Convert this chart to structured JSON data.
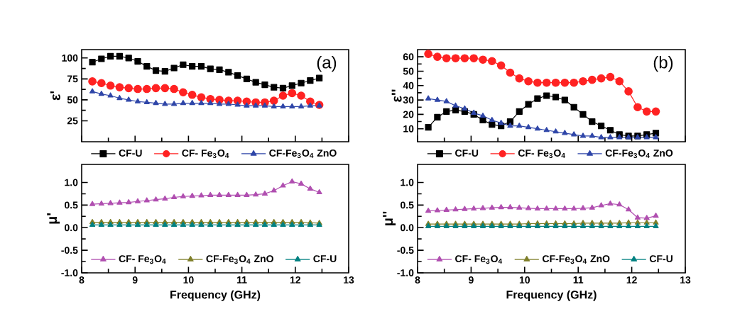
{
  "chart_data": [
    {
      "type": "line",
      "ylabel": "ε'",
      "annotations": [
        "(a)"
      ],
      "legend": "bottom",
      "tick_labels": "y",
      "line_style": "solid",
      "x": [
        8.2,
        8.37,
        8.54,
        8.71,
        8.88,
        9.05,
        9.22,
        9.39,
        9.56,
        9.73,
        9.9,
        10.07,
        10.24,
        10.41,
        10.58,
        10.75,
        10.92,
        11.09,
        11.26,
        11.43,
        11.6,
        11.77,
        11.94,
        12.11,
        12.28,
        12.45
      ],
      "xlim": [
        8,
        13
      ],
      "xticks": [
        8,
        9,
        10,
        11,
        12,
        13
      ],
      "ylim": [
        0,
        110
      ],
      "yticks": [
        25,
        50,
        75,
        100
      ],
      "series": [
        {
          "name": "CF-U",
          "color": "#000000",
          "marker": "square",
          "values": [
            95,
            99,
            102,
            102,
            100,
            96,
            90,
            85,
            84,
            88,
            92,
            90,
            90,
            87,
            86,
            83,
            79,
            75,
            71,
            68,
            65,
            64,
            67,
            70,
            73,
            76
          ]
        },
        {
          "name": "CF- Fe$_{3}$O$_{4}$",
          "color": "#ff2222",
          "marker": "circle",
          "values": [
            72,
            70,
            67,
            65,
            64,
            63,
            63,
            64,
            64,
            63,
            59,
            56,
            53,
            51,
            50,
            49,
            49,
            48,
            47,
            47,
            49,
            55,
            58,
            55,
            48,
            44
          ]
        },
        {
          "name": "CF-Fe$_{3}$O$_{4}$ ZnO",
          "color": "#2f46a8",
          "marker": "triangle",
          "values": [
            60,
            57,
            55,
            52,
            50,
            48,
            47,
            46,
            45,
            45,
            46,
            46,
            46,
            46,
            45,
            45,
            44,
            43,
            43,
            43,
            42,
            42,
            42,
            42,
            43,
            43
          ]
        }
      ]
    },
    {
      "type": "line",
      "ylabel": "μ'",
      "xlabel": "Frequency (GHz)",
      "legend": "bottom",
      "line_style": "solid",
      "x": [
        8.2,
        8.37,
        8.54,
        8.71,
        8.88,
        9.05,
        9.22,
        9.39,
        9.56,
        9.73,
        9.9,
        10.07,
        10.24,
        10.41,
        10.58,
        10.75,
        10.92,
        11.09,
        11.26,
        11.43,
        11.6,
        11.77,
        11.94,
        12.11,
        12.28,
        12.45
      ],
      "xlim": [
        8,
        13
      ],
      "xticks": [
        8,
        9,
        10,
        11,
        12,
        13
      ],
      "ylim": [
        -1,
        1.4
      ],
      "yticks": [
        {
          "value": -1,
          "label": "-1.0"
        },
        {
          "value": -0.5,
          "label": "-0.5"
        },
        {
          "value": 0,
          "label": "0.0"
        },
        {
          "value": 0.5,
          "label": "0.5"
        },
        {
          "value": 1,
          "label": "1.0"
        }
      ],
      "series": [
        {
          "name": "CF- Fe$_{3}$O$_{4}$",
          "color": "#b04fb0",
          "marker": "triangle",
          "values": [
            0.52,
            0.53,
            0.54,
            0.55,
            0.56,
            0.58,
            0.6,
            0.62,
            0.64,
            0.67,
            0.69,
            0.7,
            0.71,
            0.72,
            0.72,
            0.72,
            0.72,
            0.72,
            0.73,
            0.75,
            0.82,
            0.93,
            1.02,
            0.97,
            0.86,
            0.78
          ]
        },
        {
          "name": "CF-Fe$_{3}$O$_{4}$ ZnO",
          "color": "#7f7f2a",
          "marker": "triangle",
          "values": [
            0.12,
            0.12,
            0.12,
            0.12,
            0.12,
            0.12,
            0.12,
            0.12,
            0.12,
            0.12,
            0.12,
            0.12,
            0.12,
            0.12,
            0.12,
            0.12,
            0.12,
            0.12,
            0.12,
            0.12,
            0.12,
            0.12,
            0.12,
            0.12,
            0.11,
            0.1
          ]
        },
        {
          "name": "CF-U",
          "color": "#008080",
          "marker": "triangle",
          "values": [
            0.06,
            0.06,
            0.06,
            0.06,
            0.06,
            0.06,
            0.06,
            0.06,
            0.06,
            0.06,
            0.06,
            0.06,
            0.06,
            0.06,
            0.06,
            0.06,
            0.06,
            0.06,
            0.06,
            0.06,
            0.06,
            0.06,
            0.06,
            0.06,
            0.06,
            0.06
          ]
        }
      ]
    },
    {
      "type": "line",
      "ylabel": "ε''",
      "annotations": [
        "(b)"
      ],
      "legend": "bottom",
      "tick_labels": "y",
      "line_style": "solid",
      "x": [
        8.2,
        8.37,
        8.54,
        8.71,
        8.88,
        9.05,
        9.22,
        9.39,
        9.56,
        9.73,
        9.9,
        10.07,
        10.24,
        10.41,
        10.58,
        10.75,
        10.92,
        11.09,
        11.26,
        11.43,
        11.6,
        11.77,
        11.94,
        12.11,
        12.28,
        12.45
      ],
      "xlim": [
        8,
        13
      ],
      "xticks": [
        8,
        9,
        10,
        11,
        12,
        13
      ],
      "ylim": [
        1,
        65
      ],
      "yticks": [
        10,
        20,
        30,
        40,
        50,
        60
      ],
      "series": [
        {
          "name": "CF-U",
          "color": "#000000",
          "marker": "square",
          "values": [
            11,
            18,
            22,
            23,
            22,
            20,
            16,
            13,
            12,
            15,
            22,
            27,
            31,
            33,
            32,
            30,
            25,
            20,
            15,
            12,
            9,
            6,
            5,
            5,
            6,
            7
          ]
        },
        {
          "name": "CF- Fe$_{3}$O$_{4}$",
          "color": "#ff2222",
          "marker": "circle",
          "values": [
            62,
            60,
            59,
            59,
            59,
            59,
            58,
            57,
            54,
            49,
            45,
            43,
            42,
            42,
            42,
            42,
            42,
            43,
            44,
            45,
            46,
            43,
            36,
            25,
            22,
            22
          ]
        },
        {
          "name": "CF-Fe$_{3}$O$_{4}$ ZnO",
          "color": "#2f46a8",
          "marker": "triangle",
          "values": [
            31,
            30,
            29,
            26,
            24,
            21,
            19,
            16,
            14,
            12,
            12,
            11,
            10,
            9,
            8,
            7,
            6,
            5,
            5,
            4,
            4,
            4,
            4,
            4,
            4,
            4
          ]
        }
      ]
    },
    {
      "type": "line",
      "ylabel": "μ''",
      "xlabel": "Frequency (GHz)",
      "legend": "bottom",
      "line_style": "solid",
      "x": [
        8.2,
        8.37,
        8.54,
        8.71,
        8.88,
        9.05,
        9.22,
        9.39,
        9.56,
        9.73,
        9.9,
        10.07,
        10.24,
        10.41,
        10.58,
        10.75,
        10.92,
        11.09,
        11.26,
        11.43,
        11.6,
        11.77,
        11.94,
        12.11,
        12.28,
        12.45
      ],
      "xlim": [
        8,
        13
      ],
      "xticks": [
        8,
        9,
        10,
        11,
        12,
        13
      ],
      "ylim": [
        -1,
        1.4
      ],
      "yticks": [
        {
          "value": -1,
          "label": "-1.0"
        },
        {
          "value": -0.5,
          "label": "-0.5"
        },
        {
          "value": 0,
          "label": "0.0"
        },
        {
          "value": 0.5,
          "label": "0.5"
        },
        {
          "value": 1,
          "label": "1.0"
        }
      ],
      "series": [
        {
          "name": "CF- Fe$_{3}$O$_{4}$",
          "color": "#b04fb0",
          "marker": "triangle",
          "values": [
            0.37,
            0.38,
            0.39,
            0.4,
            0.41,
            0.42,
            0.43,
            0.44,
            0.45,
            0.45,
            0.44,
            0.43,
            0.42,
            0.42,
            0.42,
            0.42,
            0.42,
            0.43,
            0.44,
            0.49,
            0.53,
            0.51,
            0.4,
            0.22,
            0.21,
            0.26
          ]
        },
        {
          "name": "CF-Fe$_{3}$O$_{4}$ ZnO",
          "color": "#7f7f2a",
          "marker": "triangle",
          "values": [
            0.08,
            0.08,
            0.08,
            0.08,
            0.08,
            0.08,
            0.08,
            0.08,
            0.08,
            0.08,
            0.08,
            0.09,
            0.09,
            0.09,
            0.09,
            0.09,
            0.09,
            0.1,
            0.1,
            0.1,
            0.1,
            0.1,
            0.11,
            0.11,
            0.11,
            0.11
          ]
        },
        {
          "name": "CF-U",
          "color": "#008080",
          "marker": "triangle",
          "values": [
            0.03,
            0.03,
            0.03,
            0.03,
            0.03,
            0.03,
            0.03,
            0.03,
            0.03,
            0.03,
            0.03,
            0.03,
            0.03,
            0.03,
            0.03,
            0.03,
            0.03,
            0.03,
            0.03,
            0.03,
            0.03,
            0.03,
            0.03,
            0.03,
            0.03,
            0.03
          ]
        }
      ]
    }
  ]
}
